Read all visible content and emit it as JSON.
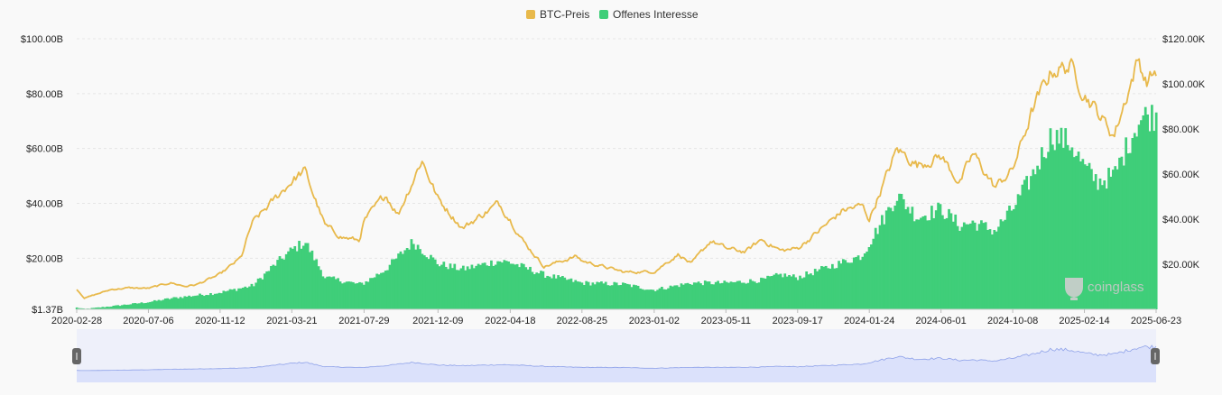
{
  "chart_data": {
    "type": "area",
    "legend": [
      {
        "label": "BTC-Preis",
        "color": "#e8b94b"
      },
      {
        "label": "Offenes Interesse",
        "color": "#3fce79"
      }
    ],
    "legend_position": "top-center",
    "watermark": "coinglass",
    "x_ticks": [
      "2020-02-28",
      "2020-07-06",
      "2020-11-12",
      "2021-03-21",
      "2021-07-29",
      "2021-12-09",
      "2022-04-18",
      "2022-08-25",
      "2023-01-02",
      "2023-05-11",
      "2023-09-17",
      "2024-01-24",
      "2024-06-01",
      "2024-10-08",
      "2025-02-14",
      "2025-06-23"
    ],
    "x_range": [
      "2020-02-28",
      "2025-06-23"
    ],
    "y_left": {
      "ticks": [
        "$1.37B",
        "$20.00B",
        "$40.00B",
        "$60.00B",
        "$80.00B",
        "$100.00B"
      ],
      "range": [
        1.37,
        100
      ],
      "unit": "USD billions"
    },
    "y_right": {
      "ticks": [
        "$20.00K",
        "$40.00K",
        "$60.00K",
        "$80.00K",
        "$100.00K",
        "$120.00K"
      ],
      "range": [
        0,
        120
      ],
      "unit": "USD thousands"
    },
    "grid": "horizontal dashed",
    "series": [
      {
        "name": "BTC-Preis",
        "axis": "right",
        "type": "line",
        "color": "#e8b94b",
        "x": [
          "2020-02-28",
          "2020-03-13",
          "2020-04-30",
          "2020-06-01",
          "2020-07-06",
          "2020-08-15",
          "2020-09-10",
          "2020-10-01",
          "2020-11-12",
          "2020-12-20",
          "2021-01-08",
          "2021-02-15",
          "2021-03-21",
          "2021-04-13",
          "2021-05-20",
          "2021-06-20",
          "2021-07-20",
          "2021-07-29",
          "2021-09-06",
          "2021-09-28",
          "2021-11-10",
          "2021-12-09",
          "2022-01-22",
          "2022-03-28",
          "2022-04-18",
          "2022-05-12",
          "2022-06-18",
          "2022-08-15",
          "2022-08-25",
          "2022-11-09",
          "2022-12-30",
          "2023-01-02",
          "2023-02-15",
          "2023-03-10",
          "2023-04-14",
          "2023-05-11",
          "2023-06-15",
          "2023-07-14",
          "2023-08-18",
          "2023-09-17",
          "2023-10-24",
          "2023-12-08",
          "2024-01-11",
          "2024-01-24",
          "2024-03-14",
          "2024-04-20",
          "2024-06-01",
          "2024-07-05",
          "2024-07-29",
          "2024-09-06",
          "2024-10-08",
          "2024-11-12",
          "2024-12-17",
          "2025-01-20",
          "2025-02-14",
          "2025-04-08",
          "2025-05-22",
          "2025-06-05",
          "2025-06-23"
        ],
        "values": [
          9.0,
          5.0,
          8.8,
          9.5,
          9.3,
          11.8,
          10.2,
          11.0,
          15.5,
          23.0,
          38.0,
          48.0,
          57.0,
          61.5,
          37.0,
          32.0,
          30.5,
          39.0,
          51.0,
          42.0,
          66.5,
          49.0,
          36.0,
          47.0,
          40.0,
          30.0,
          19.0,
          23.5,
          21.5,
          16.5,
          16.7,
          16.8,
          24.5,
          20.0,
          30.5,
          27.0,
          25.5,
          31.0,
          26.0,
          27.0,
          34.5,
          44.0,
          46.0,
          40.0,
          71.0,
          64.0,
          68.0,
          56.0,
          69.0,
          54.0,
          62.0,
          88.0,
          106.0,
          108.0,
          96.0,
          77.0,
          111.0,
          101.0,
          106.0
        ]
      },
      {
        "name": "Offenes Interesse",
        "axis": "left",
        "type": "area",
        "color": "#3fce79",
        "x": [
          "2020-02-28",
          "2020-03-13",
          "2020-05-01",
          "2020-07-06",
          "2020-08-20",
          "2020-11-12",
          "2021-01-10",
          "2021-02-20",
          "2021-03-21",
          "2021-04-14",
          "2021-05-20",
          "2021-07-20",
          "2021-07-29",
          "2021-09-06",
          "2021-10-25",
          "2021-12-09",
          "2022-01-22",
          "2022-03-28",
          "2022-04-18",
          "2022-06-18",
          "2022-08-25",
          "2022-11-09",
          "2022-12-30",
          "2023-01-02",
          "2023-03-10",
          "2023-05-11",
          "2023-07-14",
          "2023-08-18",
          "2023-09-17",
          "2023-11-15",
          "2024-01-11",
          "2024-02-20",
          "2024-03-14",
          "2024-04-20",
          "2024-06-01",
          "2024-07-05",
          "2024-07-29",
          "2024-09-06",
          "2024-10-08",
          "2024-11-12",
          "2024-12-17",
          "2025-01-20",
          "2025-02-14",
          "2025-03-10",
          "2025-04-08",
          "2025-05-22",
          "2025-06-05",
          "2025-06-23"
        ],
        "values": [
          2.0,
          1.5,
          2.5,
          4.0,
          5.5,
          7.5,
          10.0,
          18.0,
          23.0,
          26.0,
          13.0,
          10.5,
          11.0,
          16.0,
          26.0,
          18.0,
          16.0,
          19.0,
          18.5,
          14.0,
          11.0,
          10.5,
          8.5,
          8.5,
          11.0,
          11.0,
          12.0,
          14.0,
          13.0,
          17.0,
          21.0,
          35.0,
          43.0,
          35.0,
          38.0,
          32.0,
          33.0,
          30.0,
          38.0,
          50.0,
          65.0,
          62.0,
          53.0,
          48.0,
          50.0,
          70.0,
          72.0,
          72.0
        ]
      }
    ]
  },
  "navigator": {
    "handle_left_icon": "grip-handle",
    "handle_right_icon": "grip-handle",
    "fill_color": "#dbe1fb",
    "line_color": "#8fa2e9"
  }
}
